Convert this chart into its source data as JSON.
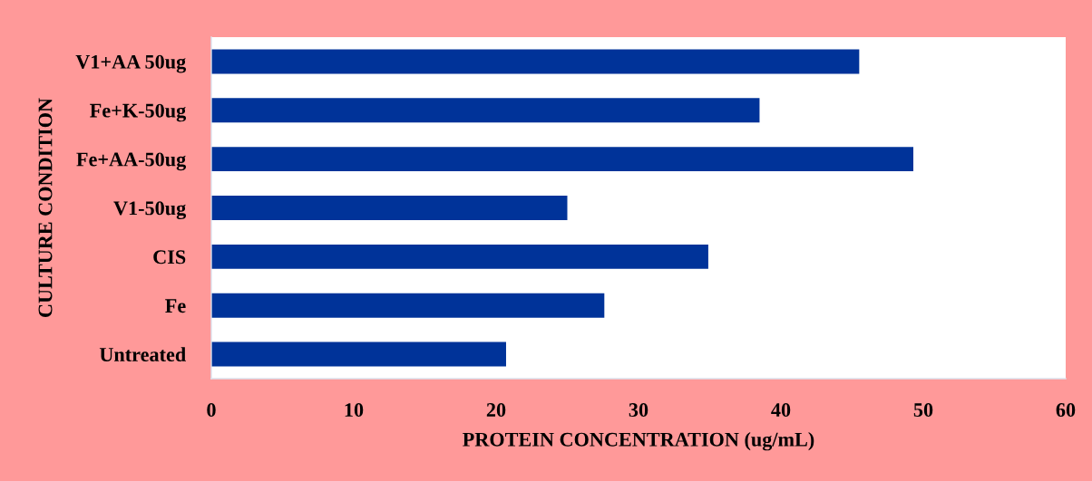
{
  "chart_data": {
    "type": "bar",
    "orientation": "horizontal",
    "xlabel": "PROTEIN CONCENTRATION (ug/mL)",
    "ylabel": "CULTURE CONDITION",
    "categories": [
      "V1+AA 50ug",
      "Fe+K-50ug",
      "Fe+AA-50ug",
      "V1-50ug",
      "CIS",
      "Fe",
      "Untreated"
    ],
    "values": [
      45.5,
      38.5,
      49.3,
      25.0,
      34.9,
      27.6,
      20.7
    ],
    "color": "#003399",
    "xlim": [
      0,
      60
    ],
    "xticks": [
      0,
      10,
      20,
      30,
      40,
      50,
      60
    ],
    "grid": false
  }
}
